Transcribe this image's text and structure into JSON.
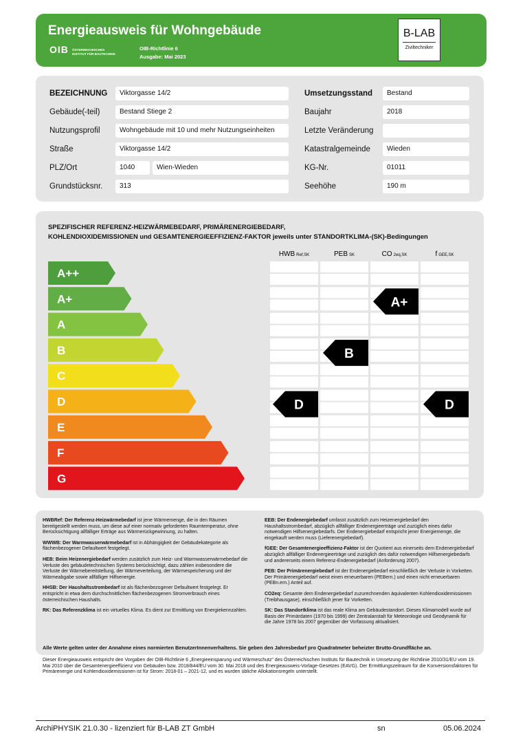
{
  "header": {
    "title": "Energieausweis für Wohngebäude",
    "logo": "OIB",
    "logo_sub": [
      "ÖSTERREICHISCHES",
      "INSTITUT FÜR BAUTECHNIK"
    ],
    "richtlinie": "OIB-Richtlinie 6",
    "ausgabe": "Ausgabe: Mai 2023",
    "badge": "B-LAB",
    "badge_sub": "Ziviltechniker"
  },
  "info": {
    "left": [
      {
        "label": "BEZEICHNUNG",
        "values": [
          "Viktorgasse 14/2"
        ]
      },
      {
        "label": "Gebäude(-teil)",
        "values": [
          "Bestand Stiege 2"
        ]
      },
      {
        "label": "Nutzungsprofil",
        "values": [
          "Wohngebäude mit 10 und mehr Nutzungseinheiten"
        ]
      },
      {
        "label": "Straße",
        "values": [
          "Viktorgasse 14/2"
        ]
      },
      {
        "label": "PLZ/Ort",
        "values": [
          "1040",
          "Wien-Wieden"
        ]
      },
      {
        "label": "Grundstücksnr.",
        "values": [
          "313"
        ]
      }
    ],
    "right": [
      {
        "label": "Umsetzungsstand",
        "values": [
          "Bestand"
        ]
      },
      {
        "label": "Baujahr",
        "values": [
          "2018"
        ]
      },
      {
        "label": "Letzte Veränderung"
      },
      {
        "label": "Katastralgemeinde",
        "values": [
          "Wieden"
        ]
      },
      {
        "label": "KG-Nr.",
        "values": [
          "01011"
        ]
      },
      {
        "label": "Seehöhe",
        "values": [
          "190 m"
        ]
      }
    ]
  },
  "scale": {
    "title": [
      "SPEZIFISCHER REFERENZ-HEIZWÄRMEBEDARF, PRIMÄRENERGIEBEDARF,",
      "KOHLENDIOXIDEMISSIONEN und GESAMTENERGIEEFFIZIENZ-FAKTOR jeweils unter STANDORTKLIMA-(SK)-Bedingungen"
    ],
    "classes": [
      "A++",
      "A+",
      "A",
      "B",
      "C",
      "D",
      "E",
      "F",
      "G"
    ],
    "columns": [
      {
        "label": "HWB",
        "sub": "Ref,SK",
        "marker": "D"
      },
      {
        "label": "PEB",
        "sub": "SK",
        "marker": "B"
      },
      {
        "label": "CO",
        "sub": "2eq,SK",
        "marker": "A+"
      },
      {
        "label": "f",
        "sub": "GEE,SK",
        "marker": "D"
      }
    ]
  },
  "glossary": {
    "left": [
      {
        "term": "HWBRef: Der Referenz-Heizwärmebedarf",
        "text": " ist jene Wärmemenge, die in den Räumen bereitgestellt werden muss, um diese auf einer normativ geforderten Raumtemperatur, ohne Berücksichtigung allfälliger Erträge aus Wärmerückgewinnung, zu halten."
      },
      {
        "term": "WWWB: Der Warmwasserwärmebedarf",
        "text": " ist in Abhängigkeit der Gebäudekategorie als flächenbezogener Defaultwert festgelegt."
      },
      {
        "term": "HEB: Beim Heizenergiebedarf",
        "text": " werden zusätzlich zum Heiz- und Warmwasserwärmebedarf die Verluste des gebäudetechnischen Systems berücksichtigt, dazu zählen insbesondere die Verluste der Wärmebereitstellung, der Wärmeverteilung, der Wärmespeicherung und der Wärmeabgabe sowie allfälliger Hilfsenergie."
      },
      {
        "term": "HHSB: Der Haushaltsstrombedarf",
        "text": " ist als flächenbezogener Defaultwert festgelegt. Er entspricht in etwa dem durchschnittlichen flächenbezogenen Stromverbrauch eines österreichischen Haushalts."
      },
      {
        "term": "RK: Das Referenzklima",
        "text": " ist ein virtuelles Klima. Es dient zur Ermittlung von Energiekennzahlen."
      }
    ],
    "right": [
      {
        "term": "EEB: Der Endenergiebedarf",
        "text": " umfasst zusätzlich zum Heizenergiebedarf den Haushaltsstrombedarf, abzüglich allfälliger Endenergieerträge und zuzüglich eines dafür notwendigen Hilfsenergiebedarfs. Der Endenergiebedarf entspricht jener Energiemenge, die eingekauft werden muss (Lieferenergiebedarf)."
      },
      {
        "term": "fGEE: Der Gesamtenergieeffizienz-Faktor",
        "text": " ist der Quotient aus einerseits dem Endenergiebedarf abzüglich allfälliger Endenergieerträge und zuzüglich des dafür notwendigen Hilfsenergiebedarfs und andererseits einem Referenz-Endenergiebedarf (Anforderung 2007)."
      },
      {
        "term": "PEB: Der Primärenergiebedarf",
        "text": " ist der Endenergiebedarf einschließlich der Verluste in Vorketten. Der Primärenergiebedarf weist einen erneuerbaren (PEBern.) und einen nicht erneuerbaren (PEBn.ern.) Anteil auf."
      },
      {
        "term": "CO2eq:",
        "text": " Gesamte dem Endenergiebedarf zuzurechnenden äquivalenten Kohlendioxidemissionen (Treibhausgase), einschließlich jener für Vorketten."
      },
      {
        "term": "SK: Das Standortklima",
        "text": " ist das reale Klima am Gebäudestandort. Dieses Klimamodell wurde auf Basis der Primärdaten (1970 bis 1999) der Zentralanstalt für Meteorologie und Geodynamik für die Jahre 1978 bis 2007 gegenüber der Vorfassung aktualisiert."
      }
    ],
    "note": "Alle Werte gelten unter der Annahme eines normierten BenutzerInnenverhaltens. Sie geben den Jahresbedarf pro Quadratmeter beheizter Brutto-Grundfläche an."
  },
  "legal": "Dieser Energieausweis entspricht den Vorgaben der OIB-Richtlinie 6 „Energieeinsparung und Wärmeschutz“ des Österreichischen Instituts für Bautechnik in Umsetzung der Richtlinie 2010/31/EU vom 19. Mai 2010 über die Gesamtenergieeffizienz von Gebäuden bzw. 2018/844/EU vom 30. Mai 2018 und des Energieausweis-Vorlage-Gesetzes (EAVG). Der Ermittlungszeitraum für die Konversionsfaktoren für Primärenergie und Kohlendioxidemissionen ist für Strom: 2018-01 – 2021-12, und es wurden übliche Allokationsregeln unterstellt.",
  "footer": {
    "software": "ArchiPHYSIK 21.0.30 - lizenziert für B-LAB ZT GmbH",
    "user": "sn",
    "date": "05.06.2024"
  }
}
